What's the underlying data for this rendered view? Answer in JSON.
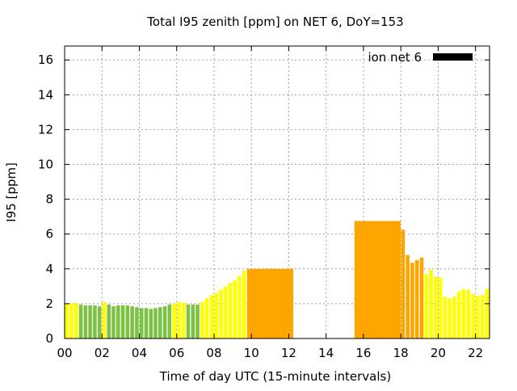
{
  "chart_data": {
    "type": "bar",
    "title": "Total I95 zenith [ppm] on NET 6, DoY=153",
    "xlabel": "Time of day UTC (15-minute intervals)",
    "ylabel": "I95 [ppm]",
    "xlim": [
      0,
      22.75
    ],
    "ylim": [
      0,
      16.8
    ],
    "x_ticks": [
      {
        "value": 0,
        "label": "00"
      },
      {
        "value": 2,
        "label": "02"
      },
      {
        "value": 4,
        "label": "04"
      },
      {
        "value": 6,
        "label": "06"
      },
      {
        "value": 8,
        "label": "08"
      },
      {
        "value": 10,
        "label": "10"
      },
      {
        "value": 12,
        "label": "12"
      },
      {
        "value": 14,
        "label": "14"
      },
      {
        "value": 16,
        "label": "16"
      },
      {
        "value": 18,
        "label": "18"
      },
      {
        "value": 20,
        "label": "20"
      },
      {
        "value": 22,
        "label": "22"
      }
    ],
    "y_ticks": [
      {
        "value": 0,
        "label": "0"
      },
      {
        "value": 2,
        "label": "2"
      },
      {
        "value": 4,
        "label": "4"
      },
      {
        "value": 6,
        "label": "6"
      },
      {
        "value": 8,
        "label": "8"
      },
      {
        "value": 10,
        "label": "10"
      },
      {
        "value": 12,
        "label": "12"
      },
      {
        "value": 14,
        "label": "14"
      },
      {
        "value": 16,
        "label": "16"
      }
    ],
    "grid": true,
    "legend": {
      "label": "ion net 6",
      "color": "#000000",
      "position": "top-right"
    },
    "colors": {
      "green": "#7dc242",
      "yellow": "#ffff00",
      "orange": "#ffa500"
    },
    "bars": [
      {
        "x": 0.0,
        "w": 0.25,
        "v": 2.0,
        "c": "yellow"
      },
      {
        "x": 0.25,
        "w": 0.25,
        "v": 2.0,
        "c": "yellow"
      },
      {
        "x": 0.5,
        "w": 0.25,
        "v": 2.05,
        "c": "yellow"
      },
      {
        "x": 0.75,
        "w": 0.25,
        "v": 1.95,
        "c": "green"
      },
      {
        "x": 1.0,
        "w": 0.25,
        "v": 1.9,
        "c": "green"
      },
      {
        "x": 1.25,
        "w": 0.25,
        "v": 1.9,
        "c": "green"
      },
      {
        "x": 1.5,
        "w": 0.25,
        "v": 1.9,
        "c": "green"
      },
      {
        "x": 1.75,
        "w": 0.25,
        "v": 1.85,
        "c": "green"
      },
      {
        "x": 2.0,
        "w": 0.25,
        "v": 2.1,
        "c": "yellow"
      },
      {
        "x": 2.25,
        "w": 0.25,
        "v": 1.95,
        "c": "green"
      },
      {
        "x": 2.5,
        "w": 0.25,
        "v": 1.85,
        "c": "green"
      },
      {
        "x": 2.75,
        "w": 0.25,
        "v": 1.9,
        "c": "green"
      },
      {
        "x": 3.0,
        "w": 0.25,
        "v": 1.9,
        "c": "green"
      },
      {
        "x": 3.25,
        "w": 0.25,
        "v": 1.9,
        "c": "green"
      },
      {
        "x": 3.5,
        "w": 0.25,
        "v": 1.85,
        "c": "green"
      },
      {
        "x": 3.75,
        "w": 0.25,
        "v": 1.8,
        "c": "green"
      },
      {
        "x": 4.0,
        "w": 0.25,
        "v": 1.75,
        "c": "green"
      },
      {
        "x": 4.25,
        "w": 0.25,
        "v": 1.75,
        "c": "green"
      },
      {
        "x": 4.5,
        "w": 0.25,
        "v": 1.7,
        "c": "green"
      },
      {
        "x": 4.75,
        "w": 0.25,
        "v": 1.75,
        "c": "green"
      },
      {
        "x": 5.0,
        "w": 0.25,
        "v": 1.8,
        "c": "green"
      },
      {
        "x": 5.25,
        "w": 0.25,
        "v": 1.85,
        "c": "green"
      },
      {
        "x": 5.5,
        "w": 0.25,
        "v": 1.95,
        "c": "green"
      },
      {
        "x": 5.75,
        "w": 0.25,
        "v": 2.0,
        "c": "yellow"
      },
      {
        "x": 6.0,
        "w": 0.25,
        "v": 2.1,
        "c": "yellow"
      },
      {
        "x": 6.25,
        "w": 0.25,
        "v": 2.05,
        "c": "yellow"
      },
      {
        "x": 6.5,
        "w": 0.25,
        "v": 1.95,
        "c": "green"
      },
      {
        "x": 6.75,
        "w": 0.25,
        "v": 1.95,
        "c": "green"
      },
      {
        "x": 7.0,
        "w": 0.25,
        "v": 1.95,
        "c": "green"
      },
      {
        "x": 7.25,
        "w": 0.25,
        "v": 2.1,
        "c": "yellow"
      },
      {
        "x": 7.5,
        "w": 0.25,
        "v": 2.3,
        "c": "yellow"
      },
      {
        "x": 7.75,
        "w": 0.25,
        "v": 2.5,
        "c": "yellow"
      },
      {
        "x": 8.0,
        "w": 0.25,
        "v": 2.6,
        "c": "yellow"
      },
      {
        "x": 8.25,
        "w": 0.25,
        "v": 2.8,
        "c": "yellow"
      },
      {
        "x": 8.5,
        "w": 0.25,
        "v": 3.0,
        "c": "yellow"
      },
      {
        "x": 8.75,
        "w": 0.25,
        "v": 3.2,
        "c": "yellow"
      },
      {
        "x": 9.0,
        "w": 0.25,
        "v": 3.35,
        "c": "yellow"
      },
      {
        "x": 9.25,
        "w": 0.25,
        "v": 3.6,
        "c": "yellow"
      },
      {
        "x": 9.5,
        "w": 0.25,
        "v": 3.9,
        "c": "yellow"
      },
      {
        "x": 9.75,
        "w": 2.5,
        "v": 4.0,
        "c": "orange"
      },
      {
        "x": 15.5,
        "w": 2.5,
        "v": 6.75,
        "c": "orange"
      },
      {
        "x": 18.0,
        "w": 0.25,
        "v": 6.25,
        "c": "orange"
      },
      {
        "x": 18.25,
        "w": 0.25,
        "v": 4.8,
        "c": "orange"
      },
      {
        "x": 18.5,
        "w": 0.25,
        "v": 4.35,
        "c": "orange"
      },
      {
        "x": 18.75,
        "w": 0.25,
        "v": 4.5,
        "c": "orange"
      },
      {
        "x": 19.0,
        "w": 0.25,
        "v": 4.65,
        "c": "orange"
      },
      {
        "x": 19.25,
        "w": 0.25,
        "v": 3.7,
        "c": "yellow"
      },
      {
        "x": 19.5,
        "w": 0.25,
        "v": 3.95,
        "c": "yellow"
      },
      {
        "x": 19.75,
        "w": 0.25,
        "v": 3.55,
        "c": "yellow"
      },
      {
        "x": 20.0,
        "w": 0.25,
        "v": 3.5,
        "c": "yellow"
      },
      {
        "x": 20.25,
        "w": 0.25,
        "v": 2.4,
        "c": "yellow"
      },
      {
        "x": 20.5,
        "w": 0.25,
        "v": 2.3,
        "c": "yellow"
      },
      {
        "x": 20.75,
        "w": 0.25,
        "v": 2.4,
        "c": "yellow"
      },
      {
        "x": 21.0,
        "w": 0.25,
        "v": 2.7,
        "c": "yellow"
      },
      {
        "x": 21.25,
        "w": 0.25,
        "v": 2.85,
        "c": "yellow"
      },
      {
        "x": 21.5,
        "w": 0.25,
        "v": 2.8,
        "c": "yellow"
      },
      {
        "x": 21.75,
        "w": 0.25,
        "v": 2.55,
        "c": "yellow"
      },
      {
        "x": 22.0,
        "w": 0.25,
        "v": 2.45,
        "c": "yellow"
      },
      {
        "x": 22.25,
        "w": 0.25,
        "v": 2.5,
        "c": "yellow"
      },
      {
        "x": 22.5,
        "w": 0.25,
        "v": 2.85,
        "c": "yellow"
      }
    ]
  }
}
